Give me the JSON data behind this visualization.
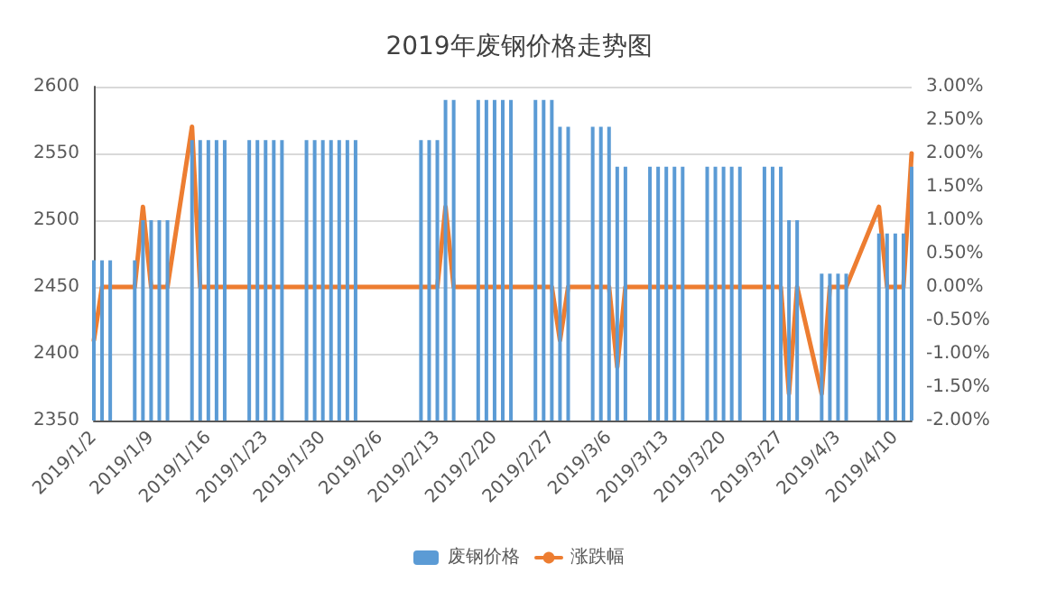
{
  "chart_data": {
    "type": "bar",
    "title": "2019年废钢价格走势图",
    "x": [
      "2019-01-02",
      "2019-01-03",
      "2019-01-04",
      "2019-01-07",
      "2019-01-08",
      "2019-01-09",
      "2019-01-10",
      "2019-01-11",
      "2019-01-14",
      "2019-01-15",
      "2019-01-16",
      "2019-01-17",
      "2019-01-18",
      "2019-01-21",
      "2019-01-22",
      "2019-01-23",
      "2019-01-24",
      "2019-01-25",
      "2019-01-28",
      "2019-01-29",
      "2019-01-30",
      "2019-01-31",
      "2019-02-01",
      "2019-02-02",
      "2019-02-03",
      "2019-02-11",
      "2019-02-12",
      "2019-02-13",
      "2019-02-14",
      "2019-02-15",
      "2019-02-18",
      "2019-02-19",
      "2019-02-20",
      "2019-02-21",
      "2019-02-22",
      "2019-02-25",
      "2019-02-26",
      "2019-02-27",
      "2019-02-28",
      "2019-03-01",
      "2019-03-04",
      "2019-03-05",
      "2019-03-06",
      "2019-03-07",
      "2019-03-08",
      "2019-03-11",
      "2019-03-12",
      "2019-03-13",
      "2019-03-14",
      "2019-03-15",
      "2019-03-18",
      "2019-03-19",
      "2019-03-20",
      "2019-03-21",
      "2019-03-22",
      "2019-03-25",
      "2019-03-26",
      "2019-03-27",
      "2019-03-28",
      "2019-03-29",
      "2019-04-01",
      "2019-04-02",
      "2019-04-03",
      "2019-04-04",
      "2019-04-08",
      "2019-04-09",
      "2019-04-10",
      "2019-04-11",
      "2019-04-12"
    ],
    "series": [
      {
        "name": "废钢价格",
        "color": "#5b9bd5",
        "values": [
          2470,
          2470,
          2470,
          2470,
          2500,
          2500,
          2500,
          2500,
          2560,
          2560,
          2560,
          2560,
          2560,
          2560,
          2560,
          2560,
          2560,
          2560,
          2560,
          2560,
          2560,
          2560,
          2560,
          2560,
          2560,
          2560,
          2560,
          2560,
          2590,
          2590,
          2590,
          2590,
          2590,
          2590,
          2590,
          2590,
          2590,
          2590,
          2570,
          2570,
          2570,
          2570,
          2570,
          2540,
          2540,
          2540,
          2540,
          2540,
          2540,
          2540,
          2540,
          2540,
          2540,
          2540,
          2540,
          2540,
          2540,
          2540,
          2500,
          2500,
          2460,
          2460,
          2460,
          2460,
          2490,
          2490,
          2490,
          2490,
          2540
        ]
      },
      {
        "name": "涨跌幅",
        "type": "line",
        "axis": "y2",
        "color": "#ed7d31",
        "values": [
          -0.8,
          0,
          0,
          0,
          1.2,
          0,
          0,
          0,
          2.4,
          0,
          0,
          0,
          0,
          0,
          0,
          0,
          0,
          0,
          0,
          0,
          0,
          0,
          0,
          0,
          0,
          0,
          0,
          0,
          1.2,
          0,
          0,
          0,
          0,
          0,
          0,
          0,
          0,
          0,
          -0.8,
          0,
          0,
          0,
          0,
          -1.2,
          0,
          0,
          0,
          0,
          0,
          0,
          0,
          0,
          0,
          0,
          0,
          0,
          0,
          0,
          -1.6,
          0,
          -1.6,
          0,
          0,
          0,
          1.2,
          0,
          0,
          0,
          2.0
        ]
      }
    ],
    "xlim": [
      "2019-01-02",
      "2019-04-12"
    ],
    "xticks": [
      {
        "value": "2019-01-02",
        "label": "2019/1/2"
      },
      {
        "value": "2019-01-09",
        "label": "2019/1/9"
      },
      {
        "value": "2019-01-16",
        "label": "2019/1/16"
      },
      {
        "value": "2019-01-23",
        "label": "2019/1/23"
      },
      {
        "value": "2019-01-30",
        "label": "2019/1/30"
      },
      {
        "value": "2019-02-06",
        "label": "2019/2/6"
      },
      {
        "value": "2019-02-13",
        "label": "2019/2/13"
      },
      {
        "value": "2019-02-20",
        "label": "2019/2/20"
      },
      {
        "value": "2019-02-27",
        "label": "2019/2/27"
      },
      {
        "value": "2019-03-06",
        "label": "2019/3/6"
      },
      {
        "value": "2019-03-13",
        "label": "2019/3/13"
      },
      {
        "value": "2019-03-20",
        "label": "2019/3/20"
      },
      {
        "value": "2019-03-27",
        "label": "2019/3/27"
      },
      {
        "value": "2019-04-03",
        "label": "2019/4/3"
      },
      {
        "value": "2019-04-10",
        "label": "2019/4/10"
      }
    ],
    "ylim": [
      2350,
      2600
    ],
    "yticks": [
      2350,
      2400,
      2450,
      2500,
      2550,
      2600
    ],
    "y2lim": [
      -2,
      3
    ],
    "y2ticks": [
      {
        "value": -2,
        "label": "-2.00%"
      },
      {
        "value": -1.5,
        "label": "-1.50%"
      },
      {
        "value": -1,
        "label": "-1.00%"
      },
      {
        "value": -0.5,
        "label": "-0.50%"
      },
      {
        "value": 0,
        "label": "0.00%"
      },
      {
        "value": 0.5,
        "label": "0.50%"
      },
      {
        "value": 1,
        "label": "1.00%"
      },
      {
        "value": 1.5,
        "label": "1.50%"
      },
      {
        "value": 2,
        "label": "2.00%"
      },
      {
        "value": 2.5,
        "label": "2.50%"
      },
      {
        "value": 3,
        "label": "3.00%"
      }
    ],
    "grid": "y",
    "legend": "bottom",
    "marker": "none",
    "line_style": "solid"
  }
}
